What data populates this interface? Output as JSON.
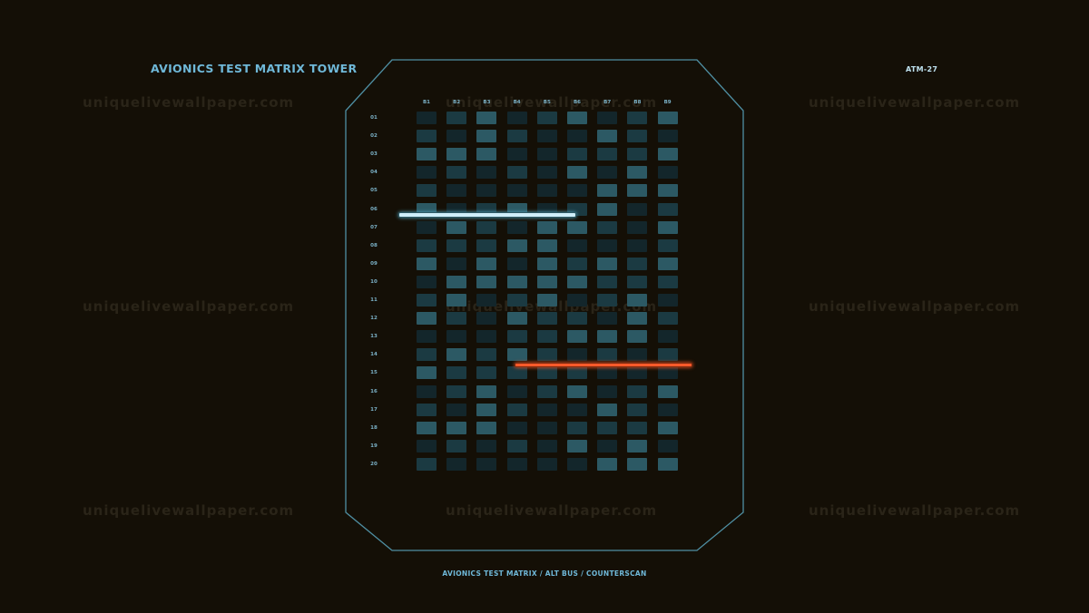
{
  "header": {
    "title": "AVIONICS TEST MATRIX TOWER",
    "code": "ATM-27"
  },
  "footer": {
    "caption": "AVIONICS TEST MATRIX / ALT BUS / COUNTERSCAN"
  },
  "watermark": "uniquelivewallpaper.com",
  "matrix": {
    "columns": [
      "B1",
      "B2",
      "B3",
      "B4",
      "B5",
      "B6",
      "B7",
      "B8",
      "B9"
    ],
    "rows": [
      "01",
      "02",
      "03",
      "04",
      "05",
      "06",
      "07",
      "08",
      "09",
      "10",
      "11",
      "12",
      "13",
      "14",
      "15",
      "16",
      "17",
      "18",
      "19",
      "20"
    ]
  },
  "colors": {
    "background": "#140f06",
    "frame": "#4f8fa3",
    "label": "#6fb8d8",
    "cell_dark": "#13262b",
    "cell_mid": "#1b3a42",
    "cell_light": "#2c5964",
    "scan_cyan": "#cfeefa",
    "scan_red": "#ff5a2a"
  }
}
